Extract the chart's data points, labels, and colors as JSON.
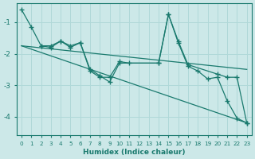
{
  "background_color": "#cce8e8",
  "grid_color": "#b0d8d8",
  "line_color": "#1a7a6e",
  "xlabel": "Humidex (Indice chaleur)",
  "xlim": [
    -0.5,
    23.5
  ],
  "ylim": [
    -4.6,
    -0.4
  ],
  "yticks": [
    -4,
    -3,
    -2,
    -1
  ],
  "xticks": [
    0,
    1,
    2,
    3,
    4,
    5,
    6,
    7,
    8,
    9,
    10,
    11,
    12,
    13,
    14,
    15,
    16,
    17,
    18,
    19,
    20,
    21,
    22,
    23
  ],
  "series": [
    {
      "x": [
        0,
        1,
        2,
        3,
        4,
        5,
        6,
        7,
        8,
        9,
        10,
        11,
        14,
        15,
        16,
        17,
        18,
        19,
        20,
        21,
        22,
        23
      ],
      "y": [
        -0.6,
        -1.15,
        -1.75,
        -1.75,
        -1.6,
        -1.75,
        -1.65,
        -2.55,
        -2.75,
        -2.75,
        -2.25,
        -2.3,
        -2.3,
        -0.75,
        -1.65,
        -2.4,
        -2.55,
        -2.8,
        -2.75,
        -3.5,
        -4.05,
        -4.2
      ]
    },
    {
      "x": [
        2,
        3,
        4,
        5,
        6,
        7,
        8,
        9,
        10,
        14,
        15,
        16,
        17,
        20,
        21,
        22,
        23
      ],
      "y": [
        -1.75,
        -1.8,
        -1.6,
        -1.8,
        -1.65,
        -2.5,
        -2.7,
        -2.9,
        -2.3,
        -2.3,
        -0.75,
        -1.6,
        -2.35,
        -2.65,
        -2.75,
        -2.75,
        -4.2
      ]
    },
    {
      "x": [
        0,
        23
      ],
      "y": [
        -1.75,
        -2.5
      ]
    },
    {
      "x": [
        0,
        23
      ],
      "y": [
        -1.75,
        -4.2
      ]
    }
  ]
}
